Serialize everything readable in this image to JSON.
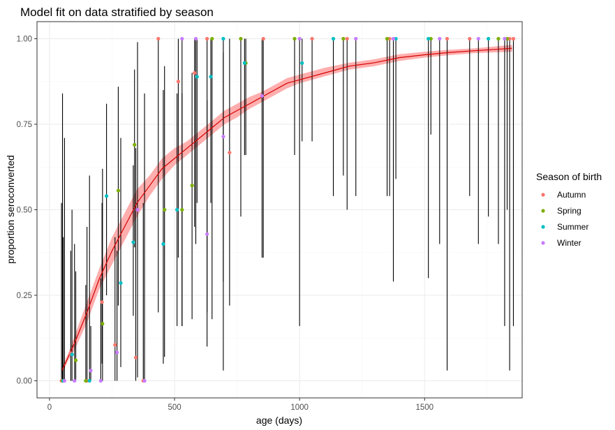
{
  "chart_data": {
    "type": "scatter",
    "title": "Model fit on data stratified by season",
    "xlabel": "age (days)",
    "ylabel": "proportion seroconverted",
    "xlim": [
      -50,
      1890
    ],
    "ylim": [
      -0.05,
      1.05
    ],
    "x_ticks": [
      0,
      500,
      1000,
      1500
    ],
    "y_ticks": [
      0.0,
      0.25,
      0.5,
      0.75,
      1.0
    ],
    "x_tick_labels": [
      "0",
      "500",
      "1000",
      "1500"
    ],
    "y_tick_labels": [
      "0.00",
      "0.25",
      "0.50",
      "0.75",
      "1.00"
    ],
    "grid": true,
    "legend": {
      "title": "Season of birth",
      "position": "right",
      "entries": [
        {
          "name": "Autumn",
          "color": "#F8766D"
        },
        {
          "name": "Spring",
          "color": "#7CAE00"
        },
        {
          "name": "Summer",
          "color": "#00BFC4"
        },
        {
          "name": "Winter",
          "color": "#C77CFF"
        }
      ]
    },
    "fit": {
      "color": "#d40000",
      "ribbon_color": "#ff9a9a",
      "x": [
        50,
        75,
        100,
        150,
        200,
        250,
        300,
        350,
        400,
        450,
        500,
        550,
        600,
        650,
        700,
        750,
        800,
        850,
        900,
        950,
        1000,
        1100,
        1200,
        1300,
        1400,
        1500,
        1600,
        1700,
        1850
      ],
      "y": [
        0.03,
        0.07,
        0.11,
        0.2,
        0.3,
        0.38,
        0.45,
        0.52,
        0.57,
        0.62,
        0.65,
        0.68,
        0.71,
        0.74,
        0.77,
        0.79,
        0.81,
        0.83,
        0.85,
        0.87,
        0.88,
        0.9,
        0.92,
        0.93,
        0.945,
        0.953,
        0.96,
        0.965,
        0.972
      ],
      "lower": [
        0.02,
        0.06,
        0.09,
        0.17,
        0.27,
        0.34,
        0.41,
        0.48,
        0.54,
        0.59,
        0.63,
        0.66,
        0.69,
        0.72,
        0.75,
        0.77,
        0.795,
        0.815,
        0.835,
        0.855,
        0.87,
        0.89,
        0.91,
        0.92,
        0.935,
        0.945,
        0.952,
        0.958,
        0.962
      ],
      "upper": [
        0.04,
        0.08,
        0.13,
        0.23,
        0.33,
        0.42,
        0.49,
        0.56,
        0.6,
        0.65,
        0.68,
        0.7,
        0.73,
        0.76,
        0.79,
        0.81,
        0.83,
        0.845,
        0.865,
        0.885,
        0.895,
        0.915,
        0.93,
        0.94,
        0.955,
        0.962,
        0.968,
        0.972,
        0.982
      ]
    },
    "series": [
      {
        "name": "Autumn",
        "color": "#F8766D",
        "points": [
          {
            "x": 48,
            "y": 0.0,
            "lo": 0.0,
            "hi": 0.52
          },
          {
            "x": 85,
            "y": 0.08,
            "lo": 0.0,
            "hi": 0.38
          },
          {
            "x": 150,
            "y": 0.0,
            "lo": 0.0,
            "hi": 0.45
          },
          {
            "x": 210,
            "y": 0.23,
            "lo": 0.05,
            "hi": 0.52
          },
          {
            "x": 262,
            "y": 0.105,
            "lo": 0.0,
            "hi": 0.42
          },
          {
            "x": 345,
            "y": 0.068,
            "lo": 0.0,
            "hi": 0.68
          },
          {
            "x": 375,
            "y": 0.0,
            "lo": 0.0,
            "hi": 0.52
          },
          {
            "x": 435,
            "y": 1.0,
            "lo": 0.2,
            "hi": 1.0
          },
          {
            "x": 515,
            "y": 0.875,
            "lo": 0.36,
            "hi": 1.0
          },
          {
            "x": 580,
            "y": 0.9,
            "lo": 0.45,
            "hi": 1.0
          },
          {
            "x": 630,
            "y": 1.0,
            "lo": 0.2,
            "hi": 1.0
          },
          {
            "x": 720,
            "y": 0.667,
            "lo": 0.22,
            "hi": 1.0
          },
          {
            "x": 855,
            "y": 1.0,
            "lo": 0.36,
            "hi": 1.0
          },
          {
            "x": 1050,
            "y": 1.0,
            "lo": 0.7,
            "hi": 1.0
          },
          {
            "x": 1190,
            "y": 1.0,
            "lo": 0.5,
            "hi": 1.0
          },
          {
            "x": 1360,
            "y": 1.0,
            "lo": 0.54,
            "hi": 1.0
          },
          {
            "x": 1590,
            "y": 1.0,
            "lo": 0.03,
            "hi": 1.0
          },
          {
            "x": 1680,
            "y": 1.0,
            "lo": 0.54,
            "hi": 1.0
          },
          {
            "x": 1840,
            "y": 1.0,
            "lo": 0.03,
            "hi": 1.0
          },
          {
            "x": 1855,
            "y": 1.0,
            "lo": 0.16,
            "hi": 1.0
          }
        ]
      },
      {
        "name": "Spring",
        "color": "#7CAE00",
        "points": [
          {
            "x": 52,
            "y": 0.0,
            "lo": 0.0,
            "hi": 0.84
          },
          {
            "x": 105,
            "y": 0.06,
            "lo": 0.0,
            "hi": 0.32
          },
          {
            "x": 145,
            "y": 0.0,
            "lo": 0.0,
            "hi": 0.28
          },
          {
            "x": 212,
            "y": 0.167,
            "lo": 0.0,
            "hi": 0.62
          },
          {
            "x": 275,
            "y": 0.556,
            "lo": 0.22,
            "hi": 0.86
          },
          {
            "x": 340,
            "y": 0.69,
            "lo": 0.39,
            "hi": 0.91
          },
          {
            "x": 460,
            "y": 0.5,
            "lo": 0.07,
            "hi": 0.92
          },
          {
            "x": 530,
            "y": 0.5,
            "lo": 0.16,
            "hi": 0.84
          },
          {
            "x": 570,
            "y": 0.571,
            "lo": 0.18,
            "hi": 0.9
          },
          {
            "x": 650,
            "y": 1.0,
            "lo": 0.18,
            "hi": 1.0
          },
          {
            "x": 765,
            "y": 1.0,
            "lo": 0.48,
            "hi": 1.0
          },
          {
            "x": 785,
            "y": 0.929,
            "lo": 0.66,
            "hi": 1.0
          },
          {
            "x": 980,
            "y": 1.0,
            "lo": 0.66,
            "hi": 1.0
          },
          {
            "x": 1175,
            "y": 1.0,
            "lo": 0.6,
            "hi": 1.0
          },
          {
            "x": 1350,
            "y": 1.0,
            "lo": 0.54,
            "hi": 1.0
          },
          {
            "x": 1525,
            "y": 1.0,
            "lo": 0.72,
            "hi": 1.0
          },
          {
            "x": 1795,
            "y": 1.0,
            "lo": 0.4,
            "hi": 1.0
          },
          {
            "x": 1830,
            "y": 1.0,
            "lo": 0.5,
            "hi": 1.0
          }
        ]
      },
      {
        "name": "Summer",
        "color": "#00BFC4",
        "points": [
          {
            "x": 55,
            "y": 0.0,
            "lo": 0.0,
            "hi": 0.42
          },
          {
            "x": 90,
            "y": 0.077,
            "lo": 0.0,
            "hi": 0.5
          },
          {
            "x": 160,
            "y": 0.0,
            "lo": 0.0,
            "hi": 0.6
          },
          {
            "x": 228,
            "y": 0.54,
            "lo": 0.25,
            "hi": 0.81
          },
          {
            "x": 285,
            "y": 0.286,
            "lo": 0.04,
            "hi": 0.71
          },
          {
            "x": 335,
            "y": 0.405,
            "lo": 0.19,
            "hi": 0.63
          },
          {
            "x": 455,
            "y": 0.4,
            "lo": 0.05,
            "hi": 0.85
          },
          {
            "x": 510,
            "y": 0.5,
            "lo": 0.16,
            "hi": 0.84
          },
          {
            "x": 590,
            "y": 0.889,
            "lo": 0.52,
            "hi": 1.0
          },
          {
            "x": 645,
            "y": 0.889,
            "lo": 0.52,
            "hi": 1.0
          },
          {
            "x": 695,
            "y": 1.0,
            "lo": 0.03,
            "hi": 1.0
          },
          {
            "x": 780,
            "y": 0.929,
            "lo": 0.66,
            "hi": 1.0
          },
          {
            "x": 1010,
            "y": 0.929,
            "lo": 0.7,
            "hi": 1.0
          },
          {
            "x": 1135,
            "y": 1.0,
            "lo": 0.54,
            "hi": 1.0
          },
          {
            "x": 1385,
            "y": 1.0,
            "lo": 0.59,
            "hi": 1.0
          },
          {
            "x": 1515,
            "y": 1.0,
            "lo": 0.3,
            "hi": 1.0
          },
          {
            "x": 1755,
            "y": 1.0,
            "lo": 0.48,
            "hi": 1.0
          }
        ]
      },
      {
        "name": "Winter",
        "color": "#C77CFF",
        "points": [
          {
            "x": 60,
            "y": 0.0,
            "lo": 0.0,
            "hi": 0.71
          },
          {
            "x": 100,
            "y": 0.0,
            "lo": 0.0,
            "hi": 0.4
          },
          {
            "x": 165,
            "y": 0.03,
            "lo": 0.0,
            "hi": 0.16
          },
          {
            "x": 205,
            "y": 0.0,
            "lo": 0.0,
            "hi": 0.3
          },
          {
            "x": 270,
            "y": 0.083,
            "lo": 0.0,
            "hi": 0.38
          },
          {
            "x": 352,
            "y": 0.5,
            "lo": 0.01,
            "hi": 0.99
          },
          {
            "x": 380,
            "y": 0.0,
            "lo": 0.0,
            "hi": 0.84
          },
          {
            "x": 530,
            "y": 1.0,
            "lo": 0.16,
            "hi": 1.0
          },
          {
            "x": 585,
            "y": 1.0,
            "lo": 0.4,
            "hi": 1.0
          },
          {
            "x": 630,
            "y": 0.429,
            "lo": 0.1,
            "hi": 0.82
          },
          {
            "x": 695,
            "y": 0.714,
            "lo": 0.29,
            "hi": 0.96
          },
          {
            "x": 850,
            "y": 0.833,
            "lo": 0.36,
            "hi": 1.0
          },
          {
            "x": 1000,
            "y": 1.0,
            "lo": 0.16,
            "hi": 1.0
          },
          {
            "x": 1225,
            "y": 1.0,
            "lo": 0.54,
            "hi": 1.0
          },
          {
            "x": 1375,
            "y": 1.0,
            "lo": 0.29,
            "hi": 1.0
          },
          {
            "x": 1560,
            "y": 1.0,
            "lo": 0.4,
            "hi": 1.0
          },
          {
            "x": 1715,
            "y": 1.0,
            "lo": 0.4,
            "hi": 1.0
          },
          {
            "x": 1820,
            "y": 1.0,
            "lo": 0.16,
            "hi": 1.0
          }
        ]
      }
    ]
  }
}
